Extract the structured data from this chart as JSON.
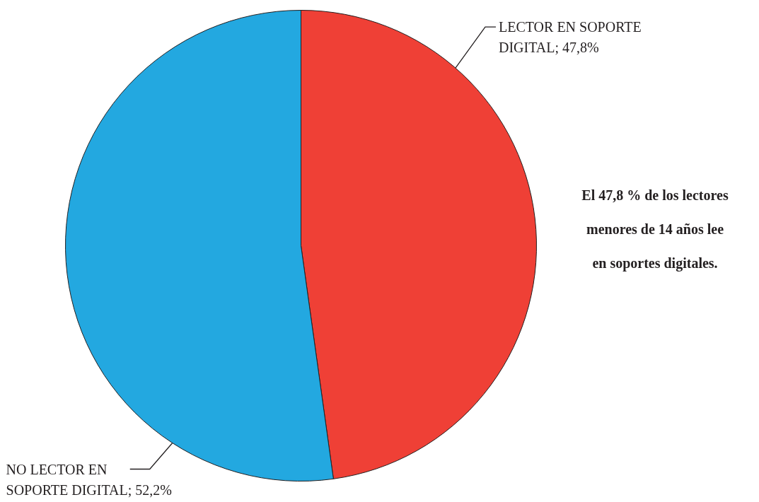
{
  "chart_data": {
    "type": "pie",
    "categories": [
      "LECTOR EN SOPORTE DIGITAL",
      "NO LECTOR EN SOPORTE DIGITAL"
    ],
    "values": [
      47.8,
      52.2
    ],
    "colors": [
      "#ef4036",
      "#23a8e0"
    ],
    "value_labels": [
      "47,8%",
      "52,2%"
    ],
    "annotations": [
      "El 47,8 % de los lectores menores de 14 años lee en soportes digitales."
    ]
  }
}
